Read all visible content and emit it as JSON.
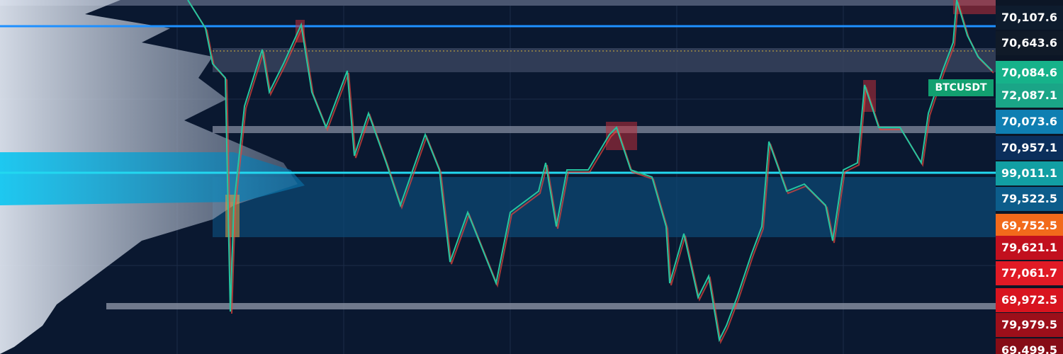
{
  "symbol": "BTCUSDT",
  "price_scale": [
    {
      "label": "70,107.6",
      "color": "#0e1c2e"
    },
    {
      "label": "70,643.6",
      "color": "#101a28"
    },
    {
      "label": "70,084.6",
      "color": "#16b28a"
    },
    {
      "label": "72,087.1",
      "color": "#1aa587"
    },
    {
      "label": "70,073.6",
      "color": "#0f7fb2"
    },
    {
      "label": "70,957.1",
      "color": "#0b2f5c"
    },
    {
      "label": "99,011.1",
      "color": "#129fa3"
    },
    {
      "label": "79,522.5",
      "color": "#0c5d8b"
    },
    {
      "label": "69,752.5",
      "color": "#f26a1b"
    },
    {
      "label": "79,621.1",
      "color": "#c2101e"
    },
    {
      "label": "77,061.7",
      "color": "#e01a25"
    },
    {
      "label": "69,972.5",
      "color": "#d8141f"
    },
    {
      "label": "79,979.5",
      "color": "#9c0f1a"
    },
    {
      "label": "69,499.5",
      "color": "#860c16"
    }
  ]
}
